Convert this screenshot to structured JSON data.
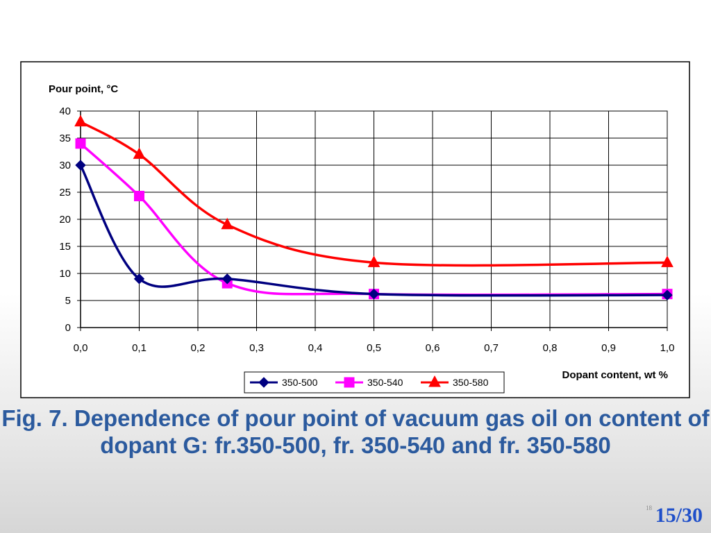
{
  "caption": "Fig. 7. Dependence of pour point of vacuum gas oil on content of dopant G: fr.350-500, fr. 350-540 and fr. 350-580",
  "slide_small_number": "18",
  "slide_number": "15/30",
  "chart_data": {
    "type": "line",
    "ylabel": "Pour point, °C",
    "xlabel": "Dopant content, wt %",
    "x_ticks": [
      "0,0",
      "0,1",
      "0,2",
      "0,3",
      "0,4",
      "0,5",
      "0,6",
      "0,7",
      "0,8",
      "0,9",
      "1,0"
    ],
    "y_ticks": [
      "0",
      "5",
      "10",
      "15",
      "20",
      "25",
      "30",
      "35",
      "40"
    ],
    "xlim": [
      0,
      1.0
    ],
    "ylim": [
      0,
      40
    ],
    "grid": true,
    "legend_position": "bottom",
    "series": [
      {
        "name": "350-500",
        "color": "#000080",
        "marker": "diamond",
        "x": [
          0.0,
          0.1,
          0.25,
          0.5,
          1.0
        ],
        "y": [
          30,
          9,
          9,
          6.2,
          6
        ]
      },
      {
        "name": "350-540",
        "color": "#ff00ff",
        "marker": "square",
        "x": [
          0.0,
          0.1,
          0.25,
          0.5,
          1.0
        ],
        "y": [
          34,
          24.3,
          8.2,
          6.2,
          6.2
        ]
      },
      {
        "name": "350-580",
        "color": "#ff0000",
        "marker": "triangle",
        "x": [
          0.0,
          0.1,
          0.25,
          0.5,
          1.0
        ],
        "y": [
          38,
          32,
          19,
          12,
          12
        ]
      }
    ]
  }
}
